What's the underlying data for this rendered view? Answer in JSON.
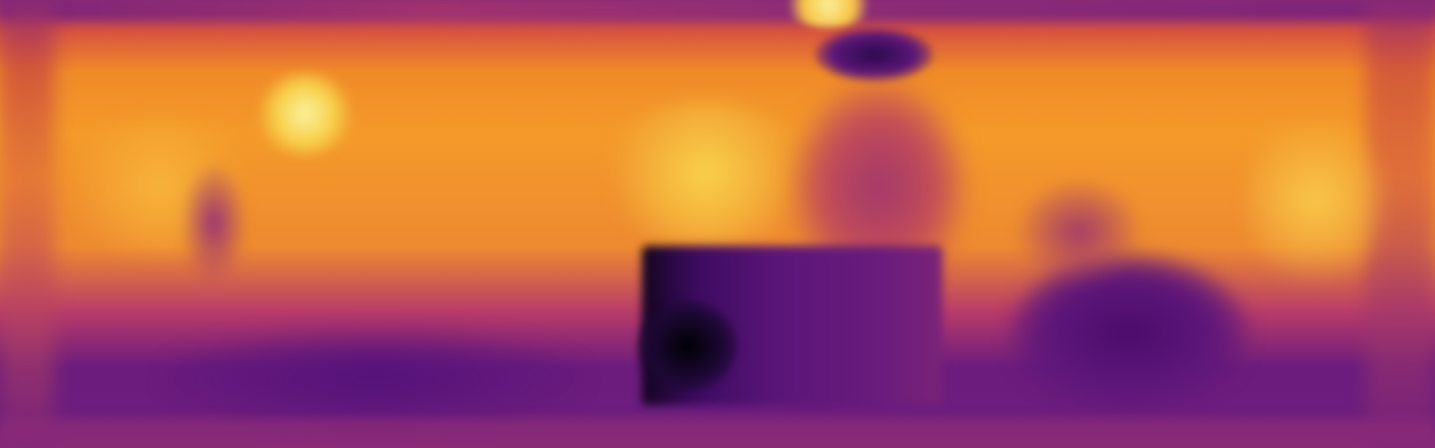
{
  "image": {
    "kind": "heatmap-photo",
    "colormap": "inferno",
    "colors": {
      "dark": "#08051c",
      "deep_purple": "#4b0c6b",
      "purple": "#6d1d7e",
      "magenta": "#b63a6a",
      "orange": "#f08a28",
      "yellow": "#fbe46a"
    }
  }
}
